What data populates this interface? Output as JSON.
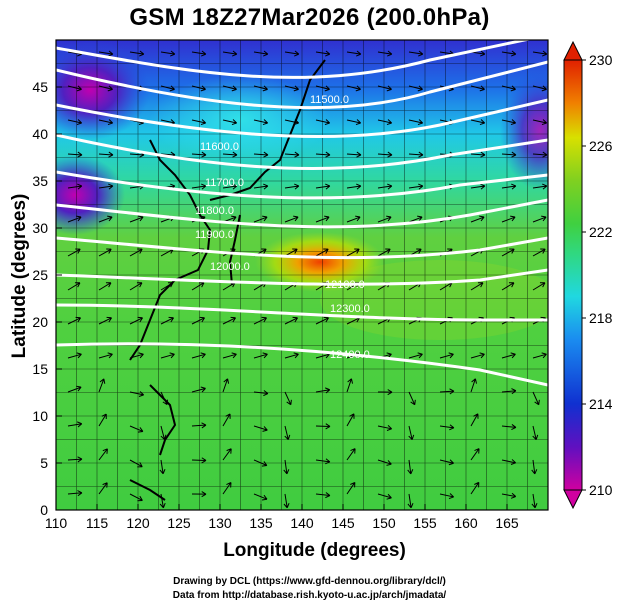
{
  "title": "GSM 18Z27Mar2026 (200.0hPa)",
  "x_axis": {
    "label": "Longitude (degrees)",
    "range": [
      110,
      170
    ],
    "ticks": [
      110,
      115,
      120,
      125,
      130,
      135,
      140,
      145,
      150,
      155,
      160,
      165
    ]
  },
  "y_axis": {
    "label": "Latitude  (degrees)",
    "range": [
      0,
      50
    ],
    "ticks": [
      0,
      5,
      10,
      15,
      20,
      25,
      30,
      35,
      40,
      45
    ]
  },
  "colorbar": {
    "ticks": [
      230,
      226,
      222,
      218,
      214,
      210
    ],
    "range": [
      210,
      230
    ],
    "colors": [
      "#d000a0",
      "#6010c0",
      "#1030d0",
      "#1a8cf0",
      "#20d8e0",
      "#30d880",
      "#40d040",
      "#60d020",
      "#a0d820",
      "#f0e000",
      "#f08000",
      "#e02000"
    ]
  },
  "contours": [
    {
      "label": "11500.0"
    },
    {
      "label": "11600.0"
    },
    {
      "label": "11700.0"
    },
    {
      "label": "11800.0"
    },
    {
      "label": "11900.0"
    },
    {
      "label": "12000.0"
    },
    {
      "label": "12100.0"
    },
    {
      "label": "12300.0"
    },
    {
      "label": "12400.0"
    }
  ],
  "credits": {
    "line1": "Drawing by DCL (https://www.gfd-dennou.org/library/dcl/)",
    "line2": "Data from http://database.rish.kyoto-u.ac.jp/arch/jmadata/"
  }
}
